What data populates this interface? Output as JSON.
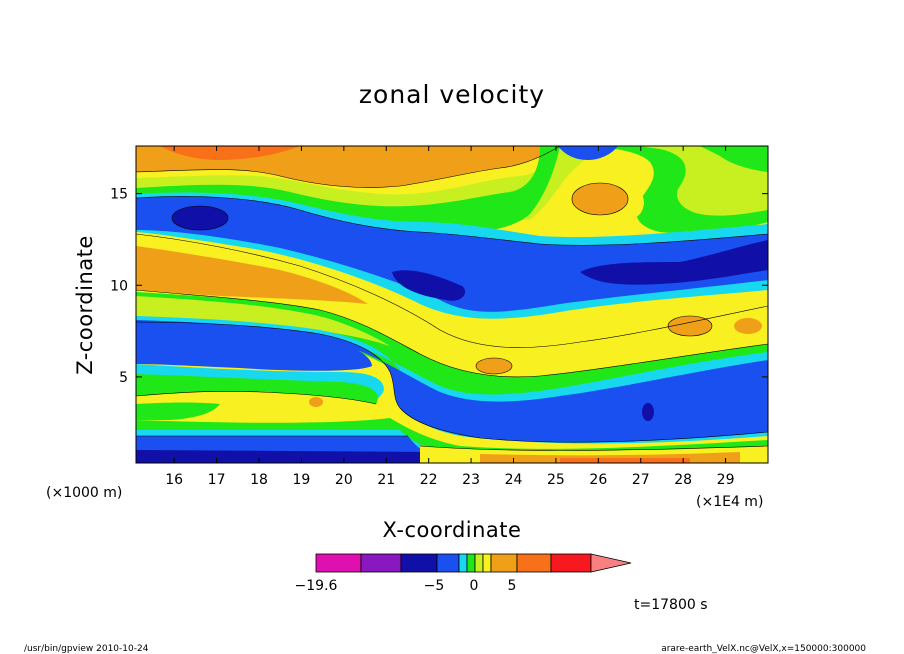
{
  "chart_data": {
    "type": "heatmap",
    "title": "zonal velocity",
    "xlabel": "X-coordinate",
    "ylabel": "Z-coordinate",
    "x_scale_label": "(×1E4 m)",
    "y_scale_label": "(×1000 m)",
    "xlim": [
      15.1,
      30
    ],
    "ylim": [
      0.3,
      17.6
    ],
    "x_ticks": [
      "16",
      "17",
      "18",
      "19",
      "20",
      "21",
      "22",
      "23",
      "24",
      "25",
      "26",
      "27",
      "28",
      "29"
    ],
    "y_ticks": [
      "5",
      "10",
      "15"
    ],
    "colorbar": {
      "colors": [
        "#e010b0",
        "#8a18c0",
        "#1010a8",
        "#1a4ff0",
        "#18d8f0",
        "#20e818",
        "#c8f020",
        "#f8f020",
        "#f0a018",
        "#f87018",
        "#f81820",
        "#f88080"
      ],
      "labels": [
        "−19.6",
        "−5",
        "0",
        "5"
      ]
    },
    "time_label": "t=17800 s",
    "colors": {
      "dark_blue": "#1010a8",
      "blue": "#1a4ff0",
      "cyan": "#18d8f0",
      "green": "#20e818",
      "yellow_green": "#c8f020",
      "yellow": "#f8f020",
      "orange": "#f0a018",
      "dark_orange": "#f87018",
      "red": "#f81820"
    }
  },
  "footer": {
    "left": "/usr/bin/gpview   2010-10-24",
    "right": "arare-earth_VelX.nc@VelX,x=150000:300000"
  }
}
